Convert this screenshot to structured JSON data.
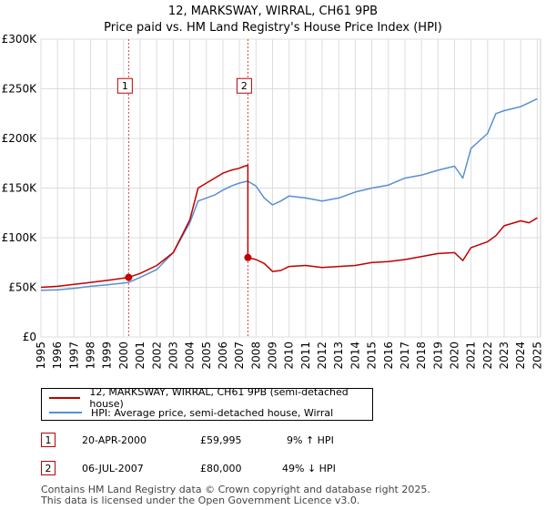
{
  "header": {
    "title": "12, MARKSWAY, WIRRAL, CH61 9PB",
    "subtitle": "Price paid vs. HM Land Registry's House Price Index (HPI)"
  },
  "colors": {
    "price": "#c00000",
    "hpi": "#5a8fd0",
    "grid": "#dddddd",
    "marker": "#c00000"
  },
  "chart_data": {
    "type": "line",
    "xlim": [
      1995,
      2025.2
    ],
    "ylim": [
      0,
      300000
    ],
    "yticks": [
      {
        "value": 0,
        "label": "£0"
      },
      {
        "value": 50000,
        "label": "£50K"
      },
      {
        "value": 100000,
        "label": "£100K"
      },
      {
        "value": 150000,
        "label": "£150K"
      },
      {
        "value": 200000,
        "label": "£200K"
      },
      {
        "value": 250000,
        "label": "£250K"
      },
      {
        "value": 300000,
        "label": "£300K"
      }
    ],
    "xticks": [
      1995,
      1996,
      1997,
      1998,
      1999,
      2000,
      2001,
      2002,
      2003,
      2004,
      2005,
      2006,
      2007,
      2008,
      2009,
      2010,
      2011,
      2012,
      2013,
      2014,
      2015,
      2016,
      2017,
      2018,
      2019,
      2020,
      2021,
      2022,
      2023,
      2024,
      2025
    ],
    "series": [
      {
        "name": "12, MARKSWAY, WIRRAL, CH61 9PB (semi-detached house)",
        "color": "#c00000",
        "x": [
          1995.0,
          1996.0,
          1997.0,
          1998.0,
          1999.0,
          2000.3,
          2001.0,
          2002.0,
          2003.0,
          2004.0,
          2004.5,
          2005.0,
          2005.5,
          2006.0,
          2006.5,
          2007.0,
          2007.3,
          2007.51,
          2007.51,
          2008.0,
          2008.5,
          2009.0,
          2009.5,
          2010.0,
          2011.0,
          2012.0,
          2013.0,
          2014.0,
          2015.0,
          2016.0,
          2017.0,
          2018.0,
          2019.0,
          2020.0,
          2020.5,
          2021.0,
          2022.0,
          2022.5,
          2023.0,
          2024.0,
          2024.5,
          2025.0
        ],
        "y": [
          50000,
          51000,
          53000,
          55000,
          57000,
          59995,
          64000,
          72000,
          85000,
          118000,
          150000,
          155000,
          160000,
          165000,
          168000,
          170000,
          172000,
          173000,
          80000,
          78000,
          74000,
          66000,
          67000,
          71000,
          72000,
          70000,
          71000,
          72000,
          75000,
          76000,
          78000,
          81000,
          84000,
          85000,
          77000,
          90000,
          96000,
          102000,
          112000,
          117000,
          115000,
          120000
        ]
      },
      {
        "name": "HPI: Average price, semi-detached house, Wirral",
        "color": "#5a8fd0",
        "x": [
          1995.0,
          1996.0,
          1997.0,
          1998.0,
          1999.0,
          2000.3,
          2001.0,
          2002.0,
          2003.0,
          2004.0,
          2004.5,
          2005.0,
          2005.5,
          2006.0,
          2006.5,
          2007.0,
          2007.5,
          2008.0,
          2008.5,
          2009.0,
          2009.5,
          2010.0,
          2011.0,
          2012.0,
          2013.0,
          2014.0,
          2015.0,
          2016.0,
          2017.0,
          2018.0,
          2019.0,
          2020.0,
          2020.5,
          2021.0,
          2022.0,
          2022.5,
          2023.0,
          2024.0,
          2024.5,
          2025.0
        ],
        "y": [
          47000,
          47500,
          49000,
          51000,
          52500,
          55000,
          60000,
          68000,
          85000,
          115000,
          137000,
          140000,
          143000,
          148000,
          152000,
          155000,
          157000,
          152000,
          140000,
          133000,
          137000,
          142000,
          140000,
          137000,
          140000,
          146000,
          150000,
          153000,
          160000,
          163000,
          168000,
          172000,
          160000,
          190000,
          205000,
          225000,
          228000,
          232000,
          236000,
          240000
        ]
      }
    ],
    "annotations": [
      {
        "label": "1",
        "x": 2000.3,
        "y": 59995,
        "badge_value": 253000
      },
      {
        "label": "2",
        "x": 2007.51,
        "y": 80000,
        "badge_value": 253000
      }
    ]
  },
  "table": [
    {
      "num": "1",
      "date": "20-APR-2000",
      "price": "£59,995",
      "hpi": "9% ↑ HPI"
    },
    {
      "num": "2",
      "date": "06-JUL-2007",
      "price": "£80,000",
      "hpi": "49% ↓ HPI"
    }
  ],
  "footer": {
    "line1": "Contains HM Land Registry data © Crown copyright and database right 2025.",
    "line2": "This data is licensed under the Open Government Licence v3.0."
  }
}
